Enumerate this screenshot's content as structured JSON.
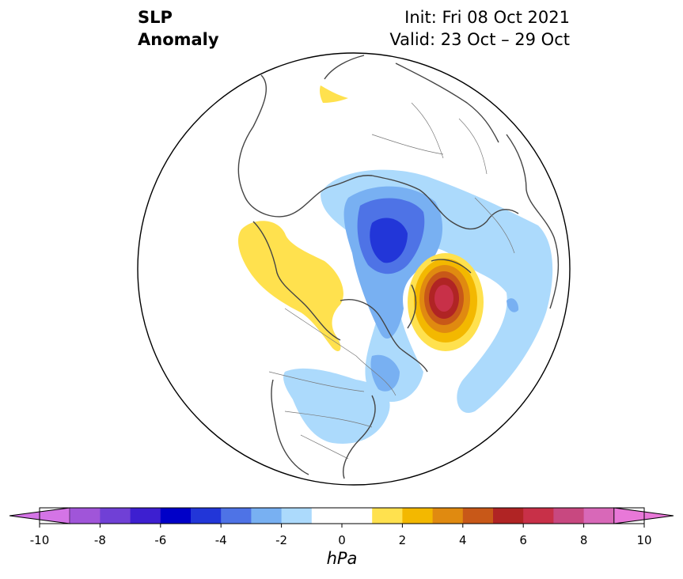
{
  "title": {
    "left_line1": "SLP",
    "left_line2": "Anomaly",
    "init": "Init: Fri 08 Oct 2021",
    "valid": "Valid: 23 Oct – 29 Oct"
  },
  "colorbar": {
    "unit": "hPa",
    "tick_labels": [
      "-10",
      "-8",
      "-6",
      "-4",
      "-2",
      "0",
      "2",
      "4",
      "6",
      "8",
      "10"
    ],
    "colors": [
      "#d474e6",
      "#a055d9",
      "#7040d6",
      "#3d1fd0",
      "#0000c8",
      "#2236d8",
      "#4e73e6",
      "#78b0f2",
      "#acdafc",
      "#ffffff",
      "#ffffff",
      "#ffe14e",
      "#f3b800",
      "#e08a10",
      "#c85818",
      "#b02424",
      "#c83048",
      "#c84880",
      "#d868b8",
      "#e878d8"
    ]
  },
  "map": {
    "colors": {
      "light_blue": "#acdafc",
      "mid_blue": "#78b0f2",
      "blue": "#4e73e6",
      "deep_blue": "#2236d8",
      "yellow": "#ffe14e",
      "gold": "#f3b800",
      "orange": "#e08a10",
      "dark_orange": "#c85818",
      "red": "#b02424",
      "crimson": "#c83048",
      "pink": "#c84880",
      "land_outline": "#444444"
    }
  }
}
